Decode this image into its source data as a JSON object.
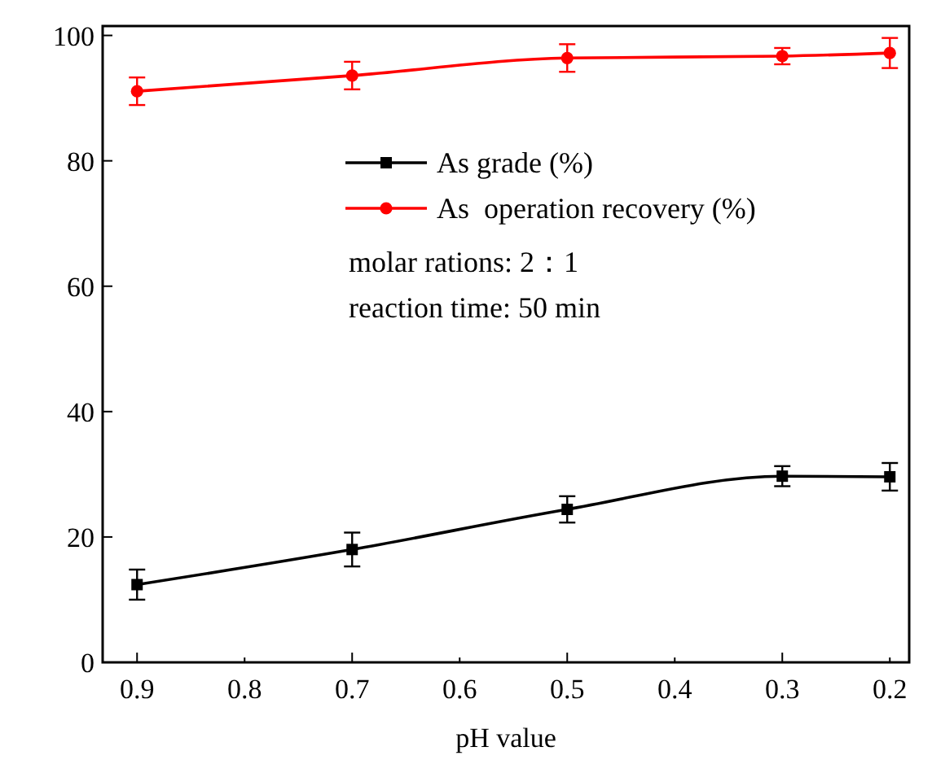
{
  "chart_data": {
    "type": "line",
    "xlabel": "pH value",
    "x": [
      0.9,
      0.7,
      0.5,
      0.3,
      0.2
    ],
    "xlim": [
      0.932,
      0.182
    ],
    "xticks": [
      0.9,
      0.8,
      0.7,
      0.6,
      0.5,
      0.4,
      0.3,
      0.2
    ],
    "ylim": [
      0,
      101.5
    ],
    "yticks": [
      0,
      20,
      40,
      60,
      80,
      100
    ],
    "legend": "top",
    "grid": false,
    "series": [
      {
        "name": "As grade (%)",
        "color": "#000000",
        "marker": "square",
        "values": [
          12.4,
          18.0,
          24.4,
          29.7,
          29.6
        ],
        "errors": [
          2.4,
          2.7,
          2.1,
          1.6,
          2.2
        ]
      },
      {
        "name": "As  operation recovery (%)",
        "color": "#ff0000",
        "marker": "circle",
        "values": [
          91.1,
          93.6,
          96.4,
          96.7,
          97.2
        ],
        "errors": [
          2.2,
          2.2,
          2.2,
          1.3,
          2.4
        ]
      }
    ],
    "annotations": [
      "molar rations: 2：1",
      "reaction time: 50 min"
    ]
  }
}
